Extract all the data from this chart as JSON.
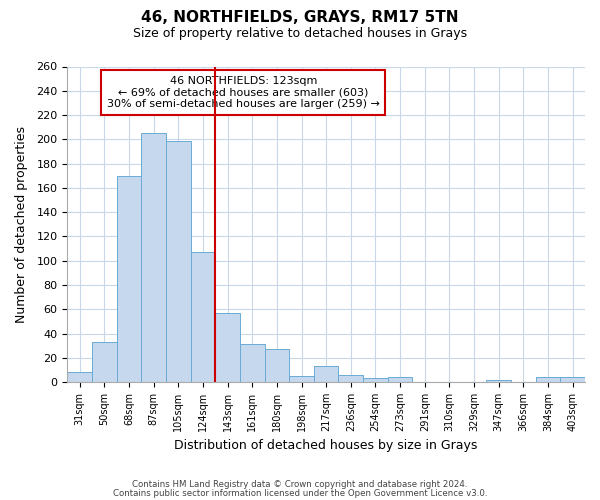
{
  "title": "46, NORTHFIELDS, GRAYS, RM17 5TN",
  "subtitle": "Size of property relative to detached houses in Grays",
  "xlabel": "Distribution of detached houses by size in Grays",
  "ylabel": "Number of detached properties",
  "bar_labels": [
    "31sqm",
    "50sqm",
    "68sqm",
    "87sqm",
    "105sqm",
    "124sqm",
    "143sqm",
    "161sqm",
    "180sqm",
    "198sqm",
    "217sqm",
    "236sqm",
    "254sqm",
    "273sqm",
    "291sqm",
    "310sqm",
    "329sqm",
    "347sqm",
    "366sqm",
    "384sqm",
    "403sqm"
  ],
  "bar_values": [
    8,
    33,
    170,
    205,
    199,
    107,
    57,
    31,
    27,
    5,
    13,
    6,
    3,
    4,
    0,
    0,
    0,
    2,
    0,
    4,
    4
  ],
  "bar_color": "#c5d8ed",
  "bar_edge_color": "#6aaad4",
  "vline_x": 5.5,
  "vline_color": "#cc0000",
  "annotation_text_line1": "46 NORTHFIELDS: 123sqm",
  "annotation_text_line2": "← 69% of detached houses are smaller (603)",
  "annotation_text_line3": "30% of semi-detached houses are larger (259) →",
  "annotation_box_facecolor": "#ffffff",
  "annotation_box_edgecolor": "#cc0000",
  "ylim": [
    0,
    260
  ],
  "yticks": [
    0,
    20,
    40,
    60,
    80,
    100,
    120,
    140,
    160,
    180,
    200,
    220,
    240,
    260
  ],
  "footer_line1": "Contains HM Land Registry data © Crown copyright and database right 2024.",
  "footer_line2": "Contains public sector information licensed under the Open Government Licence v3.0.",
  "background_color": "#ffffff",
  "grid_color": "#c8d8e8",
  "title_fontsize": 11,
  "subtitle_fontsize": 9
}
